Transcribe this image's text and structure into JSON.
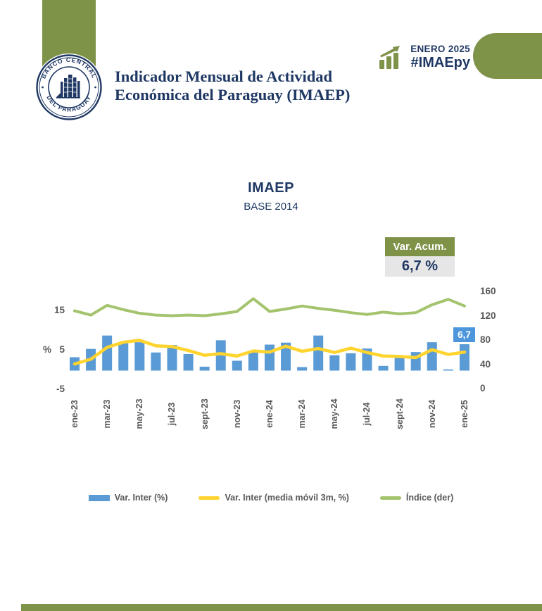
{
  "colors": {
    "brand_olive": "#7E9248",
    "navy": "#1F3864",
    "bar_blue": "#5B9BD5",
    "label_box_blue": "#4D96DB",
    "ma_yellow": "#FFD42E",
    "index_green": "#A4C36D",
    "axis_gray": "#595959",
    "value_box_gray": "#E7E6E6"
  },
  "header": {
    "title_line1": "Indicador Mensual de Actividad",
    "title_line2": "Económica del Paraguay (IMAEP)",
    "badge_month": "ENERO 2025",
    "badge_hashtag": "#IMAEpy",
    "logo_text_top": "BANCO CENTRAL",
    "logo_text_bottom": "DEL PARAGUAY",
    "trend_icon": "bar-chart-rising-arrow-icon"
  },
  "chart": {
    "title": "IMAEP",
    "subtitle": "BASE 2014",
    "var_acum_label": "Var. Acum.",
    "var_acum_value": "6,7 %",
    "last_point_label": "6,7",
    "percent_axis_label": "%"
  },
  "chart_data": {
    "type": "bar",
    "x": [
      "ene-23",
      "feb-23",
      "mar-23",
      "abr-23",
      "may-23",
      "jun-23",
      "jul-23",
      "ago-23",
      "sept-23",
      "oct-23",
      "nov-23",
      "dic-23",
      "ene-24",
      "feb-24",
      "mar-24",
      "abr-24",
      "may-24",
      "jun-24",
      "jul-24",
      "ago-24",
      "sept-24",
      "oct-24",
      "nov-24",
      "dic-24",
      "ene-25"
    ],
    "x_tick_labels_shown": [
      "ene-23",
      "mar-23",
      "may-23",
      "jul-23",
      "sept-23",
      "nov-23",
      "ene-24",
      "mar-24",
      "may-24",
      "jul-24",
      "sept-24",
      "nov-24",
      "ene-25"
    ],
    "series": [
      {
        "name": "Var. Inter (%)",
        "type": "bar",
        "axis": "left",
        "color": "#5B9BD5",
        "values": [
          3.4,
          5.5,
          8.9,
          7.1,
          7.2,
          4.6,
          6.5,
          4.2,
          1.0,
          7.7,
          2.5,
          4.9,
          6.6,
          7.1,
          0.9,
          8.9,
          3.9,
          4.4,
          5.6,
          1.2,
          3.9,
          4.7,
          7.2,
          0.3,
          6.7
        ]
      },
      {
        "name": "Var. Inter (media móvil 3m, %)",
        "type": "line",
        "axis": "left",
        "color": "#FFD42E",
        "values": [
          1.7,
          2.9,
          5.9,
          7.2,
          7.7,
          6.3,
          6.1,
          5.1,
          3.9,
          4.3,
          3.7,
          5.0,
          4.7,
          6.2,
          4.9,
          5.6,
          4.6,
          5.7,
          4.6,
          3.7,
          3.6,
          3.3,
          5.3,
          4.1,
          4.7
        ]
      },
      {
        "name": "Índice (der)",
        "type": "line",
        "axis": "right",
        "color": "#A4C36D",
        "values": [
          128,
          121,
          137,
          130,
          124,
          121,
          120,
          121,
          120,
          123,
          127,
          148,
          127,
          131,
          136,
          132,
          129,
          125,
          122,
          126,
          123,
          125,
          138,
          147,
          136
        ]
      }
    ],
    "left_axis": {
      "ticks": [
        "15",
        "5",
        "-5"
      ],
      "unit": "%",
      "range": [
        -5,
        20
      ]
    },
    "right_axis": {
      "ticks": [
        "160",
        "120",
        "80",
        "40",
        "0"
      ],
      "range": [
        0,
        176
      ]
    },
    "annotation": {
      "text": "6,7",
      "x": "ene-25",
      "series": "Var. Inter (%)"
    },
    "title": "IMAEP",
    "subtitle": "BASE 2014",
    "legend_position": "bottom",
    "grid": false
  },
  "legend": {
    "items": [
      {
        "label": "Var. Inter (%)",
        "swatch": "bar",
        "color": "#5B9BD5"
      },
      {
        "label": "Var. Inter (media móvil 3m, %)",
        "swatch": "line",
        "color": "#FFD42E"
      },
      {
        "label": "Índice (der)",
        "swatch": "line",
        "color": "#A4C36D"
      }
    ]
  }
}
